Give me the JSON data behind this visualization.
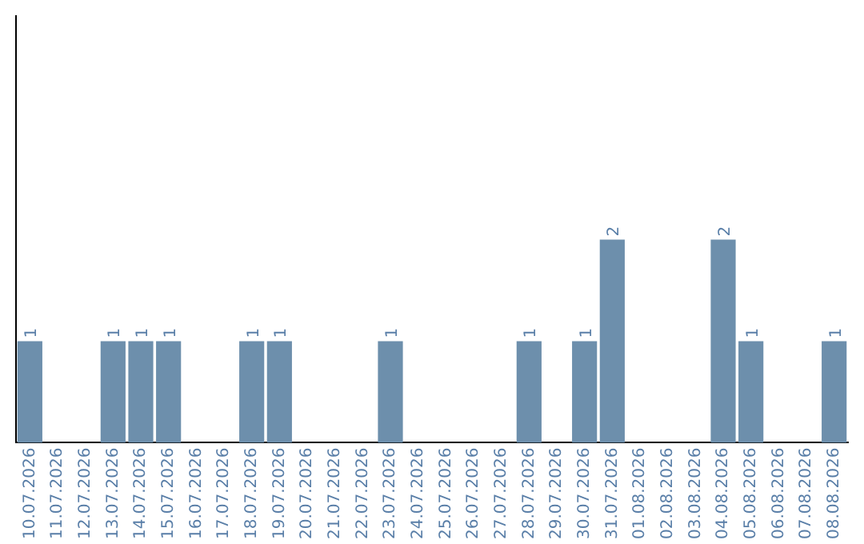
{
  "chart_data": {
    "type": "bar",
    "categories": [
      "10.07.2026",
      "11.07.2026",
      "12.07.2026",
      "13.07.2026",
      "14.07.2026",
      "15.07.2026",
      "16.07.2026",
      "17.07.2026",
      "18.07.2026",
      "19.07.2026",
      "20.07.2026",
      "21.07.2026",
      "22.07.2026",
      "23.07.2026",
      "24.07.2026",
      "25.07.2026",
      "26.07.2026",
      "27.07.2026",
      "28.07.2026",
      "29.07.2026",
      "30.07.2026",
      "31.07.2026",
      "01.08.2026",
      "02.08.2026",
      "03.08.2026",
      "04.08.2026",
      "05.08.2026",
      "06.08.2026",
      "07.08.2026",
      "08.08.2026"
    ],
    "values": [
      1,
      0,
      0,
      1,
      1,
      1,
      0,
      0,
      1,
      1,
      0,
      0,
      0,
      1,
      0,
      0,
      0,
      0,
      1,
      0,
      1,
      2,
      0,
      0,
      0,
      2,
      1,
      0,
      0,
      1
    ],
    "value_labels": [
      "1",
      null,
      null,
      "1",
      "1",
      "1",
      null,
      null,
      "1",
      "1",
      null,
      null,
      null,
      "1",
      null,
      null,
      null,
      null,
      "1",
      null,
      "1",
      "2",
      null,
      null,
      null,
      "2",
      "1",
      null,
      null,
      "1"
    ],
    "color": "#6d8fac",
    "ylim": [
      0,
      4.2
    ],
    "tick_labels": "x",
    "grid": false,
    "legend": false
  }
}
